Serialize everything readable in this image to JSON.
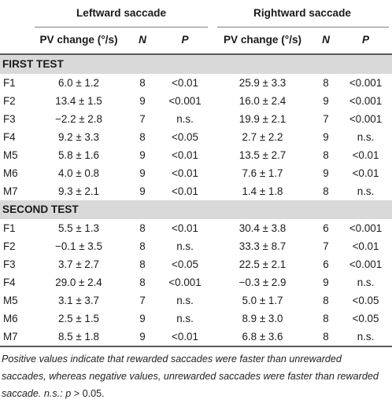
{
  "header": {
    "group_left": "Leftward saccade",
    "group_right": "Rightward saccade",
    "col_pv": "PV change (°/s)",
    "col_n": "N",
    "col_p": "P"
  },
  "sections": [
    {
      "title": "FIRST TEST",
      "rows": [
        {
          "id": "F1",
          "l_pv": "6.0 ± 1.2",
          "l_n": "8",
          "l_p": "<0.01",
          "r_pv": "25.9 ± 3.3",
          "r_n": "8",
          "r_p": "<0.001"
        },
        {
          "id": "F2",
          "l_pv": "13.4 ± 1.5",
          "l_n": "9",
          "l_p": "<0.001",
          "r_pv": "16.0 ± 2.4",
          "r_n": "9",
          "r_p": "<0.001"
        },
        {
          "id": "F3",
          "l_pv": "−2.2 ± 2.8",
          "l_n": "7",
          "l_p": "n.s.",
          "r_pv": "19.9 ± 2.1",
          "r_n": "7",
          "r_p": "<0.001"
        },
        {
          "id": "F4",
          "l_pv": "9.2 ± 3.3",
          "l_n": "8",
          "l_p": "<0.05",
          "r_pv": "2.7 ± 2.2",
          "r_n": "9",
          "r_p": "n.s."
        },
        {
          "id": "M5",
          "l_pv": "5.8 ± 1.6",
          "l_n": "9",
          "l_p": "<0.01",
          "r_pv": "13.5 ± 2.7",
          "r_n": "8",
          "r_p": "<0.01"
        },
        {
          "id": "M6",
          "l_pv": "4.0 ± 0.8",
          "l_n": "9",
          "l_p": "<0.01",
          "r_pv": "7.6 ± 1.7",
          "r_n": "9",
          "r_p": "<0.01"
        },
        {
          "id": "M7",
          "l_pv": "9.3 ± 2.1",
          "l_n": "9",
          "l_p": "<0.01",
          "r_pv": "1.4 ± 1.8",
          "r_n": "8",
          "r_p": "n.s."
        }
      ]
    },
    {
      "title": "SECOND TEST",
      "rows": [
        {
          "id": "F1",
          "l_pv": "5.5 ± 1.3",
          "l_n": "8",
          "l_p": "<0.01",
          "r_pv": "30.4 ± 3.8",
          "r_n": "6",
          "r_p": "<0.001"
        },
        {
          "id": "F2",
          "l_pv": "−0.1 ± 3.5",
          "l_n": "8",
          "l_p": "n.s.",
          "r_pv": "33.3 ± 8.7",
          "r_n": "7",
          "r_p": "<0.01"
        },
        {
          "id": "F3",
          "l_pv": "3.7 ± 2.7",
          "l_n": "8",
          "l_p": "<0.05",
          "r_pv": "22.5 ± 2.1",
          "r_n": "6",
          "r_p": "<0.001"
        },
        {
          "id": "F4",
          "l_pv": "29.0 ± 2.4",
          "l_n": "8",
          "l_p": "<0.001",
          "r_pv": "−0.3 ± 2.9",
          "r_n": "9",
          "r_p": "n.s."
        },
        {
          "id": "M5",
          "l_pv": "3.1 ± 3.7",
          "l_n": "7",
          "l_p": "n.s.",
          "r_pv": "5.0 ± 1.7",
          "r_n": "8",
          "r_p": "<0.05"
        },
        {
          "id": "M6",
          "l_pv": "2.5 ± 1.5",
          "l_n": "9",
          "l_p": "n.s.",
          "r_pv": "8.9 ± 3.0",
          "r_n": "8",
          "r_p": "<0.05"
        },
        {
          "id": "M7",
          "l_pv": "8.5 ± 1.8",
          "l_n": "9",
          "l_p": "<0.01",
          "r_pv": "6.8 ± 3.6",
          "r_n": "8",
          "r_p": "n.s."
        }
      ]
    }
  ],
  "footnote": {
    "text": "Positive values indicate that rewarded saccades were faster than unrewarded saccades, whereas negative values, unrewarded saccades were faster than rewarded saccade. n.s.: ",
    "p_symbol": "p",
    "p_rest": " > 0.05."
  }
}
